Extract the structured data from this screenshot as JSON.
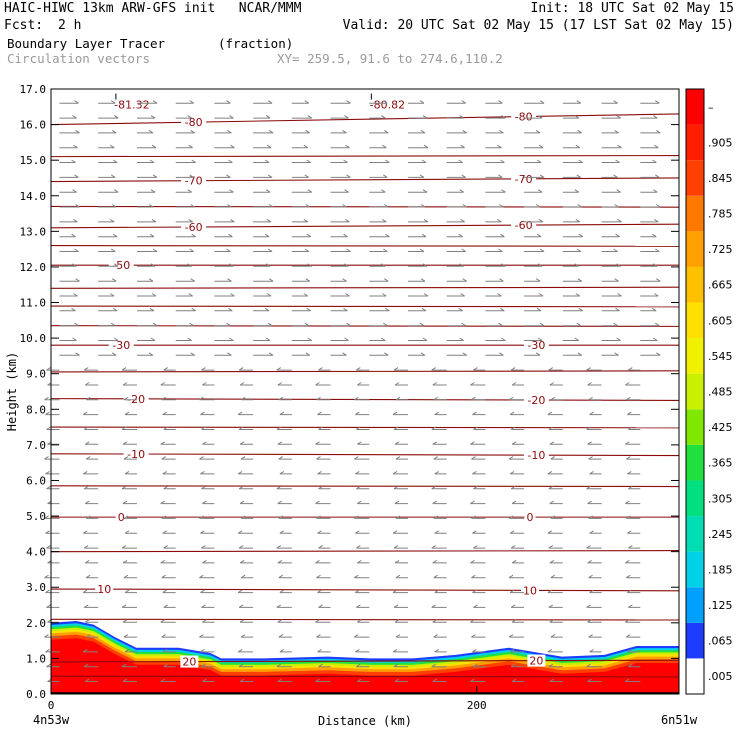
{
  "header": {
    "model": "HAIC-HIWC 13km ARW-GFS init   NCAR/MMM",
    "init": "Init: 18 UTC Sat 02 May 15",
    "fcst_label": "Fcst:",
    "fcst_value": "2 h",
    "valid": "Valid: 20 UTC Sat 02 May 15 (17 LST Sat 02 May 15)",
    "field_name": "Boundary Layer Tracer",
    "field_units": "(fraction)",
    "vector_name": "Circulation vectors",
    "xy_range": "XY= 259.5, 91.6 to 274.6,110.2"
  },
  "chart_data": {
    "type": "cross-section",
    "xlabel": "Distance (km)",
    "ylabel": "Height (km)",
    "xlim": [
      0,
      295
    ],
    "ylim": [
      0,
      17
    ],
    "x_ticks": [
      {
        "value": 0,
        "label": "0"
      },
      {
        "value": 200,
        "label": "200"
      }
    ],
    "x_end_labels": {
      "left": "4n53w",
      "right": "6n51w"
    },
    "y_ticks": [
      "0.0",
      "1.0",
      "2.0",
      "3.0",
      "4.0",
      "5.0",
      "6.0",
      "7.0",
      "8.0",
      "9.0",
      "10.0",
      "11.0",
      "12.0",
      "13.0",
      "14.0",
      "15.0",
      "16.0",
      "17.0"
    ],
    "colorbar": {
      "labels": [
        ".005",
        ".065",
        ".125",
        ".185",
        ".245",
        ".305",
        ".365",
        ".425",
        ".485",
        ".545",
        ".605",
        ".665",
        ".725",
        ".785",
        ".845",
        ".905",
        "–"
      ],
      "colors": [
        "#ffffff",
        "#1e3cff",
        "#00a0ff",
        "#00d0e8",
        "#00dcb4",
        "#00e080",
        "#20e040",
        "#80e800",
        "#c8f000",
        "#f0f000",
        "#ffe000",
        "#ffc000",
        "#ffa000",
        "#ff7800",
        "#ff4000",
        "#ff1e00",
        "#ff0000"
      ]
    },
    "temperature_contours": {
      "color": "#8b0a0a",
      "levels": [
        {
          "label": "-80",
          "left": 16.0,
          "right": 16.3,
          "label_x": [
            67,
            222
          ]
        },
        {
          "label": "-70",
          "left": 14.4,
          "right": 14.5,
          "label_x": [
            67,
            222
          ]
        },
        {
          "label": "-60",
          "left": 13.1,
          "right": 13.2,
          "label_x": [
            67,
            222
          ]
        },
        {
          "label": "-50",
          "left": 12.05,
          "right": 12.05,
          "label_x": [
            33
          ]
        },
        {
          "label": "-30",
          "left": 9.8,
          "right": 9.8,
          "label_x": [
            33,
            228
          ]
        },
        {
          "label": "-20",
          "left": 8.3,
          "right": 8.25,
          "label_x": [
            40,
            228
          ]
        },
        {
          "label": "-10",
          "left": 6.75,
          "right": 6.7,
          "label_x": [
            40,
            228
          ]
        },
        {
          "label": "0",
          "left": 4.97,
          "right": 4.97,
          "label_x": [
            33,
            225
          ]
        },
        {
          "label": "10",
          "left": 2.95,
          "right": 2.9,
          "label_x": [
            25,
            225
          ]
        },
        {
          "label": "20",
          "left": 0.9,
          "right": 0.95,
          "label_x": [
            65,
            228
          ]
        }
      ],
      "unlabeled": [
        15.1,
        13.7,
        12.6,
        11.4,
        10.9,
        10.35,
        9.05,
        7.5,
        5.85,
        4.0,
        2.1,
        0.5
      ]
    },
    "minima_labels": [
      {
        "label": "-81.32",
        "x": 38,
        "y": 16.45
      },
      {
        "label": "-80.82",
        "x": 158,
        "y": 16.45
      }
    ],
    "boundary_layer_top": {
      "x": [
        0,
        12,
        20,
        30,
        40,
        60,
        75,
        80,
        100,
        130,
        150,
        170,
        190,
        215,
        240,
        260,
        275,
        295
      ],
      "y": [
        2.0,
        2.05,
        1.95,
        1.6,
        1.3,
        1.3,
        1.15,
        1.0,
        1.0,
        1.05,
        1.0,
        1.0,
        1.1,
        1.3,
        1.05,
        1.1,
        1.35,
        1.35
      ]
    },
    "circulation_vectors": {
      "upper_direction": "east",
      "lower_direction": "west",
      "reversal_height": 9.4
    }
  }
}
